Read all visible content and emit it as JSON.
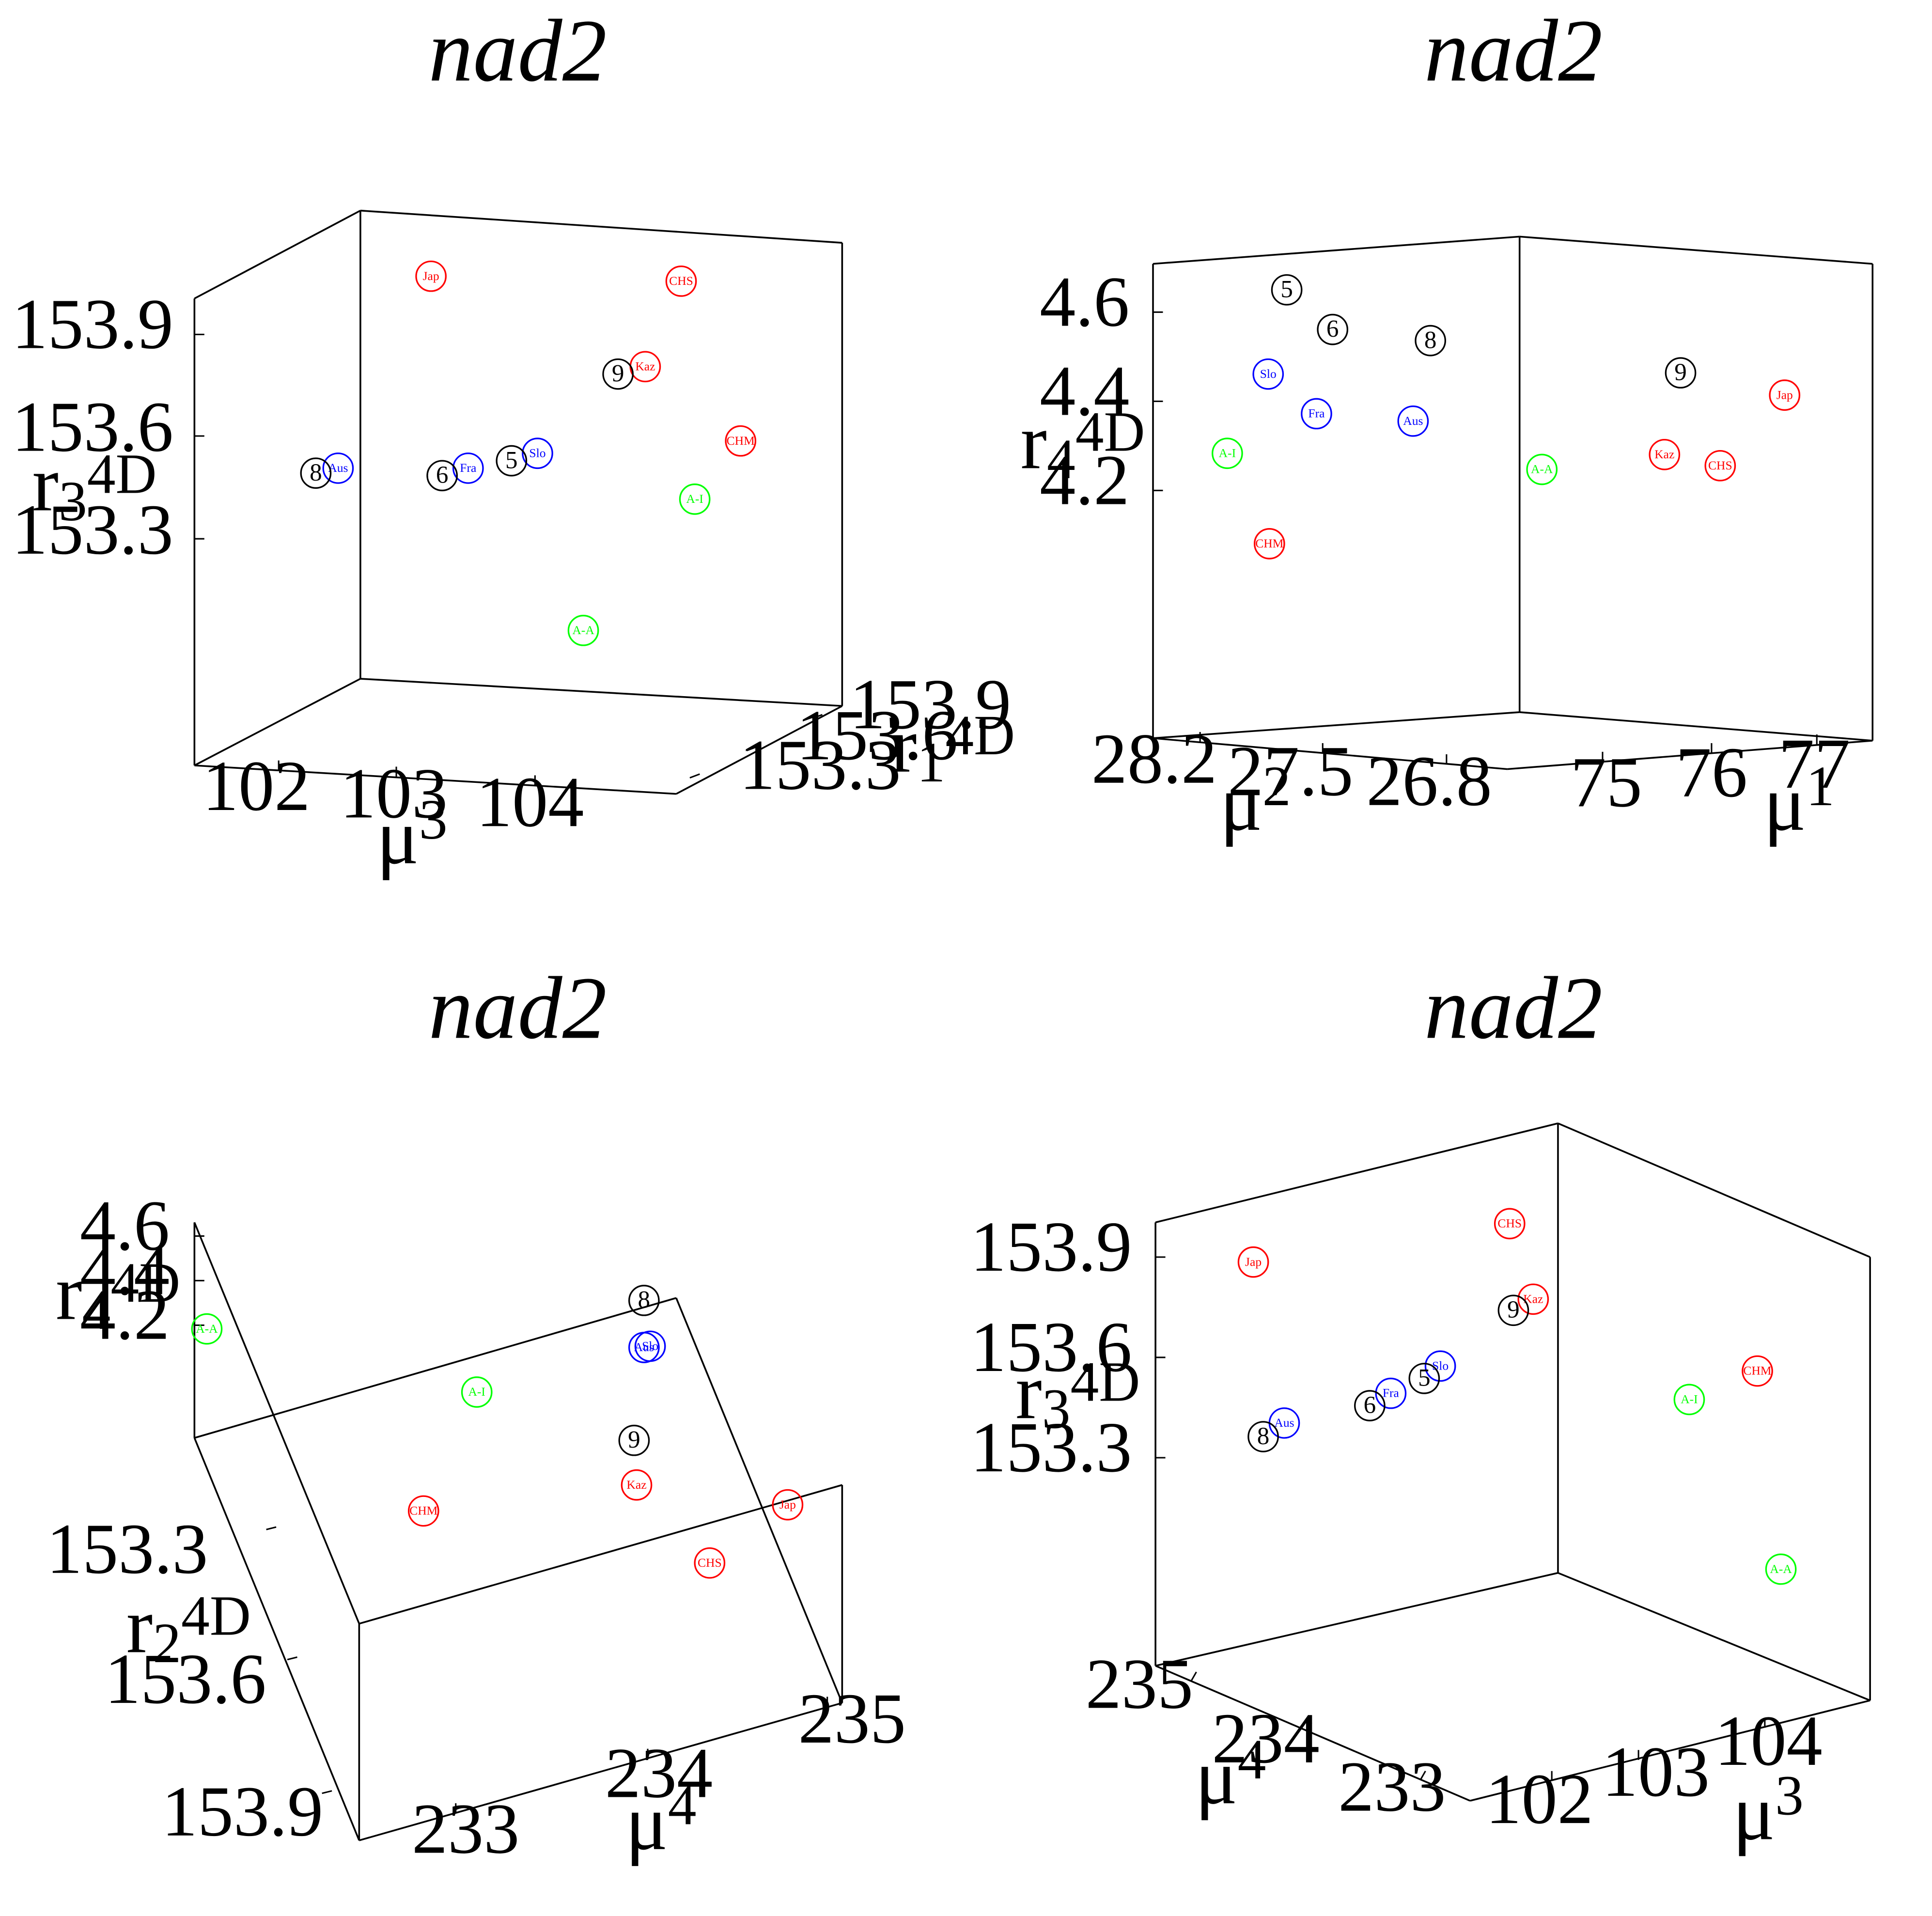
{
  "colors": {
    "black": "#000000",
    "blue": "#0000ff",
    "red": "#ff0000",
    "green": "#00ff00"
  },
  "chart_data": [
    {
      "type": "scatter",
      "projection": "3d",
      "title": "nad2",
      "axes": {
        "x": {
          "label": "μ",
          "sup": "3",
          "ticks": [
            "102",
            "103",
            "104"
          ]
        },
        "y": {
          "label": "r",
          "sub": "1",
          "sup": "4D",
          "ticks": [
            "153.3",
            "153.6",
            "153.9"
          ]
        },
        "z": {
          "label": "r",
          "sub": "3",
          "sup": "4D",
          "ticks": [
            "153.3",
            "153.6",
            "153.9"
          ]
        }
      },
      "points": [
        {
          "label": "Jap",
          "color": "red"
        },
        {
          "label": "CHS",
          "color": "red"
        },
        {
          "label": "Kaz",
          "color": "red"
        },
        {
          "label": "CHM",
          "color": "red"
        },
        {
          "label": "9",
          "color": "black"
        },
        {
          "label": "Aus",
          "color": "blue"
        },
        {
          "label": "Fra",
          "color": "blue"
        },
        {
          "label": "Slo",
          "color": "blue"
        },
        {
          "label": "A-I",
          "color": "green"
        },
        {
          "label": "A-A",
          "color": "green"
        },
        {
          "label": "8",
          "color": "black"
        },
        {
          "label": "6",
          "color": "black"
        },
        {
          "label": "5",
          "color": "black"
        }
      ]
    },
    {
      "type": "scatter",
      "projection": "3d",
      "title": "nad2",
      "axes": {
        "x": {
          "label": "μ",
          "sup": "2",
          "ticks": [
            "28.2",
            "27.5",
            "26.8"
          ]
        },
        "y": {
          "label": "μ",
          "sup": "1",
          "ticks": [
            "75",
            "76",
            "77"
          ]
        },
        "z": {
          "label": "r",
          "sub": "4",
          "sup": "4D",
          "ticks": [
            "4.2",
            "4.4",
            "4.6"
          ]
        }
      },
      "points": [
        {
          "label": "5",
          "color": "black"
        },
        {
          "label": "6",
          "color": "black"
        },
        {
          "label": "8",
          "color": "black"
        },
        {
          "label": "9",
          "color": "black"
        },
        {
          "label": "Slo",
          "color": "blue"
        },
        {
          "label": "Fra",
          "color": "blue"
        },
        {
          "label": "Aus",
          "color": "blue"
        },
        {
          "label": "A-I",
          "color": "green"
        },
        {
          "label": "A-A",
          "color": "green"
        },
        {
          "label": "CHM",
          "color": "red"
        },
        {
          "label": "Kaz",
          "color": "red"
        },
        {
          "label": "CHS",
          "color": "red"
        },
        {
          "label": "Jap",
          "color": "red"
        }
      ]
    },
    {
      "type": "scatter",
      "projection": "3d",
      "title": "nad2",
      "axes": {
        "x": {
          "label": "μ",
          "sup": "4",
          "ticks": [
            "233",
            "234",
            "235"
          ]
        },
        "y": {
          "label": "r",
          "sub": "2",
          "sup": "4D",
          "ticks": [
            "153.3",
            "153.6",
            "153.9"
          ]
        },
        "z": {
          "label": "r",
          "sub": "4",
          "sup": "4D",
          "ticks": [
            "4.2",
            "4.4",
            "4.6"
          ]
        }
      },
      "points": [
        {
          "label": "A-A",
          "color": "green"
        },
        {
          "label": "A-I",
          "color": "green"
        },
        {
          "label": "8",
          "color": "black"
        },
        {
          "label": "Aus",
          "color": "blue"
        },
        {
          "label": "Slo",
          "color": "blue"
        },
        {
          "label": "9",
          "color": "black"
        },
        {
          "label": "Kaz",
          "color": "red"
        },
        {
          "label": "CHM",
          "color": "red"
        },
        {
          "label": "Jap",
          "color": "red"
        },
        {
          "label": "CHS",
          "color": "red"
        }
      ]
    },
    {
      "type": "scatter",
      "projection": "3d",
      "title": "nad2",
      "axes": {
        "x": {
          "label": "μ",
          "sup": "4",
          "ticks": [
            "235",
            "234",
            "233"
          ]
        },
        "y": {
          "label": "μ",
          "sup": "3",
          "ticks": [
            "102",
            "103",
            "104"
          ]
        },
        "z": {
          "label": "r",
          "sub": "3",
          "sup": "4D",
          "ticks": [
            "153.3",
            "153.6",
            "153.9"
          ]
        }
      },
      "points": [
        {
          "label": "Jap",
          "color": "red"
        },
        {
          "label": "CHS",
          "color": "red"
        },
        {
          "label": "Kaz",
          "color": "red"
        },
        {
          "label": "9",
          "color": "black"
        },
        {
          "label": "CHM",
          "color": "red"
        },
        {
          "label": "Slo",
          "color": "blue"
        },
        {
          "label": "Fra",
          "color": "blue"
        },
        {
          "label": "Aus",
          "color": "blue"
        },
        {
          "label": "A-I",
          "color": "green"
        },
        {
          "label": "A-A",
          "color": "green"
        },
        {
          "label": "8",
          "color": "black"
        },
        {
          "label": "6",
          "color": "black"
        },
        {
          "label": "5",
          "color": "black"
        }
      ]
    }
  ]
}
